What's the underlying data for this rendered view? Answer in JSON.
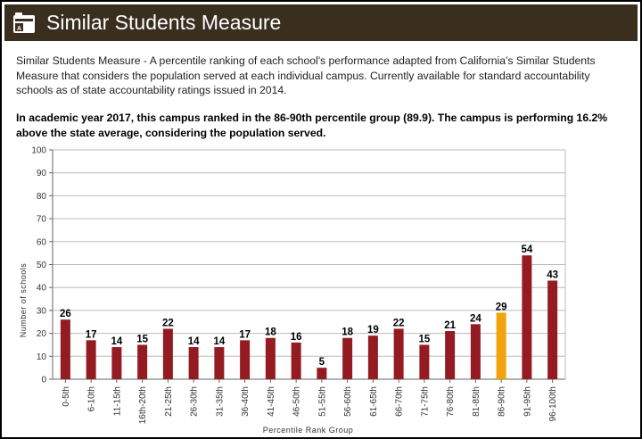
{
  "header": {
    "title": "Similar Students Measure",
    "icon": "report-icon"
  },
  "description": "Similar Students Measure - A percentile ranking of each school's performance adapted from California's Similar Students Measure that considers the population served at each individual campus. Currently available for standard accountability schools as of state accountability ratings issued in 2014.",
  "result_text": "In academic year 2017, this campus ranked in the 86-90th percentile group (89.9). The campus is performing 16.2% above the state average, considering the population served.",
  "colors": {
    "header_bg": "#3a2e1f",
    "bar": "#951b23",
    "highlight": "#f0a30a"
  },
  "chart_data": {
    "type": "bar",
    "xlabel": "Percentile Rank Group",
    "ylabel": "Number of schools",
    "ylim": [
      0,
      100
    ],
    "yticks": [
      0,
      10,
      20,
      30,
      40,
      50,
      60,
      70,
      80,
      90,
      100
    ],
    "grid": true,
    "highlight_category": "86-90th",
    "categories": [
      "0-5th",
      "6-10th",
      "11-15th",
      "16th-20th",
      "21-25th",
      "26-30th",
      "31-35th",
      "36-40th",
      "41-45th",
      "46-50th",
      "51-55th",
      "56-60th",
      "61-65th",
      "66-70th",
      "71-75th",
      "76-80th",
      "81-85th",
      "86-90th",
      "91-95th",
      "96-100th"
    ],
    "values": [
      26,
      17,
      14,
      15,
      22,
      14,
      14,
      17,
      18,
      16,
      5,
      18,
      19,
      22,
      15,
      21,
      24,
      29,
      54,
      43
    ]
  }
}
